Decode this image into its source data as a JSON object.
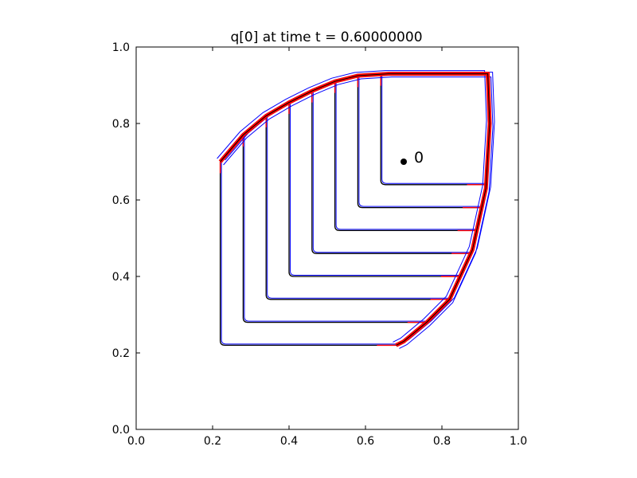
{
  "chart_data": {
    "type": "line",
    "title": "q[0] at time t =     0.60000000",
    "xlabel": "",
    "ylabel": "",
    "xlim": [
      0.0,
      1.0
    ],
    "ylim": [
      0.0,
      1.0
    ],
    "xticks": [
      "0.0",
      "0.2",
      "0.4",
      "0.6",
      "0.8",
      "1.0"
    ],
    "yticks": [
      "0.0",
      "0.2",
      "0.4",
      "0.6",
      "0.8",
      "1.0"
    ],
    "grid": false,
    "legend": "none",
    "colors": {
      "contour": "#000000",
      "outline_blue": "#0000ff",
      "highlight_red": "#ff0000",
      "axes": "#000000"
    },
    "annotation": {
      "label": "0",
      "x": 0.7,
      "y": 0.7
    },
    "contour_levels": [
      {
        "x0": 0.22,
        "y0": 0.22
      },
      {
        "x0": 0.28,
        "y0": 0.28
      },
      {
        "x0": 0.34,
        "y0": 0.34
      },
      {
        "x0": 0.4,
        "y0": 0.4
      },
      {
        "x0": 0.46,
        "y0": 0.46
      },
      {
        "x0": 0.52,
        "y0": 0.52
      },
      {
        "x0": 0.58,
        "y0": 0.58
      },
      {
        "x0": 0.64,
        "y0": 0.64
      }
    ],
    "front": {
      "top_y": 0.93,
      "right_x": 0.925,
      "corner": [
        0.92,
        0.93
      ],
      "diagonal": [
        [
          0.22,
          0.7
        ],
        [
          0.28,
          0.77
        ],
        [
          0.34,
          0.82
        ],
        [
          0.4,
          0.855
        ],
        [
          0.46,
          0.885
        ],
        [
          0.52,
          0.91
        ],
        [
          0.58,
          0.925
        ],
        [
          0.66,
          0.93
        ],
        [
          0.81,
          0.93
        ],
        [
          0.92,
          0.93
        ],
        [
          0.925,
          0.8
        ],
        [
          0.915,
          0.63
        ],
        [
          0.88,
          0.47
        ],
        [
          0.82,
          0.34
        ],
        [
          0.76,
          0.28
        ],
        [
          0.7,
          0.23
        ],
        [
          0.68,
          0.22
        ]
      ]
    }
  }
}
